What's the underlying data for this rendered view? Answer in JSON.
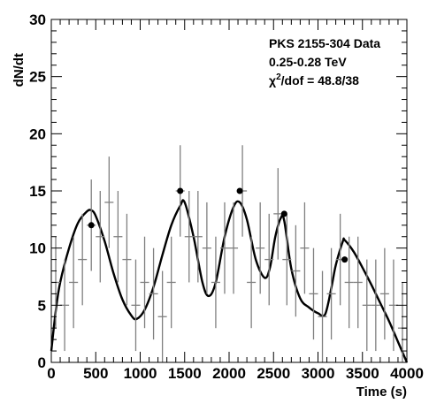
{
  "chart_data": {
    "type": "scatter",
    "xlabel": "Time (s)",
    "ylabel": "dN/dt",
    "xlim": [
      0,
      4000
    ],
    "ylim": [
      0,
      30
    ],
    "x_ticks": [
      "0",
      "500",
      "1000",
      "1500",
      "2000",
      "2500",
      "3000",
      "3500",
      "4000"
    ],
    "y_ticks": [
      "0",
      "5",
      "10",
      "15",
      "20",
      "25",
      "30"
    ],
    "annotation": {
      "line1": "PKS 2155-304 Data",
      "line2": "0.25-0.28 TeV",
      "line3_prefix": "χ",
      "line3_sup": "2",
      "line3_suffix": "/dof = 48.8/38"
    },
    "series": [
      {
        "kind": "data_points_with_errors",
        "x": [
          50,
          150,
          250,
          350,
          450,
          550,
          650,
          750,
          850,
          950,
          1050,
          1150,
          1250,
          1350,
          1450,
          1550,
          1650,
          1750,
          1850,
          1950,
          2050,
          2150,
          2250,
          2350,
          2450,
          2550,
          2650,
          2750,
          2850,
          2950,
          3050,
          3150,
          3250,
          3350,
          3450,
          3550,
          3650,
          3750,
          3850,
          3950
        ],
        "y": [
          7,
          5,
          7,
          9,
          12,
          11,
          14,
          11,
          9,
          5,
          7,
          6,
          4,
          7,
          15,
          11,
          11,
          10,
          7,
          10,
          10,
          15,
          7,
          10,
          9,
          13,
          9,
          8,
          10,
          6,
          4,
          6,
          9,
          7,
          7,
          5,
          5,
          6,
          5,
          3
        ],
        "yerr": [
          4,
          4,
          4,
          4,
          4,
          4,
          4,
          4,
          4,
          4,
          4,
          4,
          4,
          4,
          4,
          4,
          4,
          4,
          4,
          4,
          4,
          4,
          4,
          4,
          4,
          4,
          4,
          4,
          4,
          4,
          4,
          4,
          4,
          4,
          4,
          4,
          4,
          4,
          4,
          4
        ],
        "xerr": 50
      },
      {
        "kind": "highlighted_points",
        "x": [
          450,
          1450,
          2120,
          2620,
          3300
        ],
        "y": [
          12,
          15,
          15,
          13,
          9
        ]
      },
      {
        "kind": "fit_curve",
        "x": [
          0,
          50,
          100,
          200,
          300,
          400,
          450,
          500,
          600,
          700,
          800,
          900,
          960,
          1050,
          1150,
          1250,
          1350,
          1450,
          1500,
          1600,
          1700,
          1770,
          1850,
          1950,
          2050,
          2120,
          2200,
          2300,
          2400,
          2460,
          2520,
          2580,
          2620,
          2700,
          2800,
          2900,
          3000,
          3080,
          3150,
          3200,
          3280,
          3300,
          3400,
          3500,
          3600,
          3700,
          3800,
          3900,
          4000
        ],
        "y": [
          1,
          4.5,
          7,
          10,
          12.2,
          13.2,
          13.3,
          12.8,
          10.6,
          7.8,
          5.5,
          4.1,
          3.8,
          4.6,
          6.6,
          9.4,
          12,
          13.7,
          14,
          11,
          7,
          5.8,
          7,
          11,
          13.6,
          14,
          12.5,
          9,
          7.4,
          8.3,
          11,
          12.6,
          12.4,
          8.2,
          5.6,
          4.8,
          4.3,
          4.2,
          6.5,
          8.5,
          10.6,
          10.7,
          9.7,
          8.3,
          6.8,
          5.2,
          3.6,
          1.8,
          0
        ]
      }
    ]
  }
}
